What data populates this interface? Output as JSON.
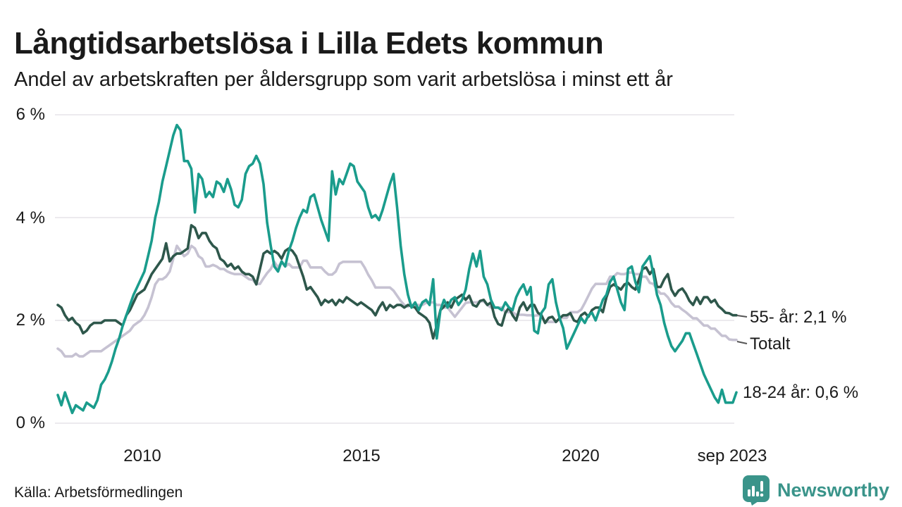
{
  "title": "Långtidsarbetslösa i Lilla Edets kommun",
  "subtitle": "Andel av arbetskraften per åldersgrupp som varit arbetslösa i minst ett år",
  "source": "Källa: Arbetsförmedlingen",
  "brand": {
    "name": "Newsworthy",
    "color": "#3a948a",
    "icon": "newsworthy-speech-bubble-bar-chart-icon"
  },
  "colors": {
    "young": "#1a9c8c",
    "old": "#2e574b",
    "total": "#c6c2d2",
    "grid": "#e5e3e8",
    "text": "#1a1a1a",
    "legend_dash": "#555555",
    "background": "#ffffff"
  },
  "chart_data": {
    "type": "line",
    "title": "Långtidsarbetslösa i Lilla Edets kommun",
    "subtitle": "Andel av arbetskraften per åldersgrupp som varit arbetslösa i minst ett år",
    "unit": "% av arbetskraften",
    "frequency": "monthly",
    "x_start": "jan 2008",
    "x_end": "sep 2023",
    "ylim": [
      0,
      6
    ],
    "y_ticks_top_down": [
      "6 %",
      "4 %",
      "2 %",
      "0 %"
    ],
    "x_tick_labels": [
      "2010",
      "2015",
      "2020",
      "sep 2023"
    ],
    "grid": "horizontal",
    "legend_position": "right-of-line-ends",
    "series": [
      {
        "name": "Totalt",
        "end_label": "Totalt",
        "end_value": 1.6,
        "color": "#c6c2d2",
        "values": [
          1.45,
          1.4,
          1.3,
          1.3,
          1.3,
          1.35,
          1.3,
          1.3,
          1.35,
          1.4,
          1.4,
          1.4,
          1.4,
          1.45,
          1.5,
          1.55,
          1.6,
          1.65,
          1.7,
          1.75,
          1.8,
          1.9,
          1.95,
          2.0,
          2.1,
          2.25,
          2.45,
          2.7,
          2.8,
          2.8,
          2.85,
          2.95,
          3.2,
          3.45,
          3.35,
          3.25,
          3.3,
          3.45,
          3.4,
          3.25,
          3.2,
          3.05,
          3.05,
          3.08,
          3.05,
          3.0,
          3.0,
          2.95,
          2.92,
          2.9,
          2.9,
          2.9,
          2.85,
          2.8,
          2.79,
          2.71,
          2.71,
          2.82,
          2.92,
          3.0,
          3.14,
          3.03,
          3.14,
          3.05,
          3.1,
          3.03,
          3.03,
          3.03,
          3.16,
          3.16,
          3.03,
          3.03,
          3.03,
          3.03,
          2.95,
          2.89,
          2.89,
          2.95,
          3.1,
          3.14,
          3.14,
          3.14,
          3.14,
          3.14,
          3.14,
          3.03,
          2.89,
          2.78,
          2.64,
          2.64,
          2.64,
          2.64,
          2.64,
          2.58,
          2.48,
          2.38,
          2.3,
          2.27,
          2.3,
          2.3,
          2.3,
          2.3,
          2.34,
          2.35,
          2.35,
          2.3,
          2.3,
          2.25,
          2.25,
          2.16,
          2.07,
          2.16,
          2.25,
          2.34,
          2.35,
          2.35,
          2.35,
          2.37,
          2.37,
          2.3,
          2.25,
          2.25,
          2.25,
          2.25,
          2.16,
          2.16,
          2.16,
          2.11,
          2.11,
          2.11,
          2.1,
          2.1,
          2.09,
          2.1,
          2.1,
          1.97,
          1.97,
          1.97,
          1.97,
          2.04,
          2.05,
          2.05,
          2.16,
          2.16,
          2.16,
          2.21,
          2.34,
          2.48,
          2.62,
          2.71,
          2.71,
          2.71,
          2.71,
          2.85,
          2.85,
          2.92,
          2.9,
          2.9,
          2.93,
          2.93,
          2.9,
          2.9,
          2.85,
          2.85,
          2.73,
          2.71,
          2.6,
          2.52,
          2.52,
          2.45,
          2.34,
          2.27,
          2.27,
          2.21,
          2.16,
          2.1,
          2.04,
          2.04,
          1.97,
          1.9,
          1.9,
          1.84,
          1.84,
          1.77,
          1.7,
          1.7,
          1.63,
          1.62,
          1.62
        ]
      },
      {
        "name": "55- år",
        "end_label": "55- år: 2,1 %",
        "end_value": 2.1,
        "color": "#2e574b",
        "values": [
          2.3,
          2.25,
          2.1,
          2.0,
          2.05,
          1.95,
          1.9,
          1.75,
          1.8,
          1.9,
          1.95,
          1.95,
          1.95,
          2.0,
          2.0,
          2.0,
          2.0,
          1.95,
          1.9,
          2.1,
          2.2,
          2.35,
          2.5,
          2.55,
          2.6,
          2.75,
          2.9,
          3.0,
          3.1,
          3.2,
          3.5,
          3.15,
          3.25,
          3.3,
          3.3,
          3.35,
          3.4,
          3.85,
          3.8,
          3.6,
          3.7,
          3.7,
          3.55,
          3.45,
          3.4,
          3.2,
          3.15,
          3.05,
          3.1,
          3.0,
          3.05,
          2.95,
          2.9,
          2.9,
          2.85,
          2.7,
          3.0,
          3.3,
          3.35,
          3.3,
          3.35,
          3.3,
          3.2,
          3.35,
          3.4,
          3.35,
          3.25,
          3.05,
          2.85,
          2.6,
          2.65,
          2.55,
          2.45,
          2.3,
          2.4,
          2.35,
          2.4,
          2.3,
          2.4,
          2.35,
          2.45,
          2.4,
          2.35,
          2.3,
          2.35,
          2.3,
          2.25,
          2.2,
          2.1,
          2.25,
          2.35,
          2.2,
          2.3,
          2.25,
          2.3,
          2.3,
          2.25,
          2.3,
          2.28,
          2.25,
          2.15,
          2.1,
          2.05,
          1.95,
          1.65,
          1.9,
          2.2,
          2.27,
          2.35,
          2.25,
          2.4,
          2.45,
          2.5,
          2.4,
          2.48,
          2.3,
          2.27,
          2.38,
          2.4,
          2.3,
          2.35,
          2.07,
          1.93,
          1.9,
          2.15,
          2.25,
          2.1,
          2.0,
          2.25,
          2.35,
          2.2,
          2.3,
          2.3,
          2.15,
          2.1,
          1.95,
          2.05,
          2.07,
          1.97,
          2.04,
          2.1,
          2.1,
          2.14,
          2.0,
          1.97,
          2.1,
          2.15,
          2.07,
          2.2,
          2.25,
          2.25,
          2.16,
          2.45,
          2.65,
          2.7,
          2.65,
          2.6,
          2.7,
          2.73,
          2.65,
          2.6,
          2.8,
          3.0,
          3.03,
          2.9,
          3.0,
          2.65,
          2.65,
          2.8,
          2.9,
          2.6,
          2.48,
          2.58,
          2.62,
          2.52,
          2.38,
          2.3,
          2.45,
          2.32,
          2.45,
          2.45,
          2.35,
          2.4,
          2.28,
          2.22,
          2.15,
          2.14,
          2.1,
          2.1
        ]
      },
      {
        "name": "18-24 år",
        "end_label": "18-24 år: 0,6 %",
        "end_value": 0.6,
        "color": "#1a9c8c",
        "values": [
          0.55,
          0.35,
          0.6,
          0.4,
          0.2,
          0.35,
          0.3,
          0.25,
          0.4,
          0.35,
          0.3,
          0.45,
          0.75,
          0.85,
          1.0,
          1.2,
          1.45,
          1.65,
          1.9,
          2.1,
          2.3,
          2.5,
          2.65,
          2.8,
          2.95,
          3.25,
          3.55,
          4.0,
          4.3,
          4.7,
          5.0,
          5.3,
          5.6,
          5.8,
          5.7,
          5.1,
          5.1,
          4.95,
          4.1,
          4.85,
          4.75,
          4.4,
          4.5,
          4.4,
          4.7,
          4.65,
          4.5,
          4.75,
          4.55,
          4.25,
          4.2,
          4.35,
          4.85,
          5.0,
          5.05,
          5.2,
          5.05,
          4.65,
          3.9,
          3.45,
          3.05,
          2.95,
          3.15,
          3.05,
          3.35,
          3.55,
          3.8,
          4.0,
          4.15,
          4.1,
          4.4,
          4.45,
          4.2,
          3.95,
          3.75,
          3.55,
          4.9,
          4.45,
          4.75,
          4.65,
          4.85,
          5.05,
          5.0,
          4.7,
          4.6,
          4.5,
          4.2,
          4.0,
          4.05,
          3.95,
          4.15,
          4.4,
          4.65,
          4.85,
          4.2,
          3.45,
          2.9,
          2.5,
          2.25,
          2.35,
          2.2,
          2.35,
          2.4,
          2.3,
          2.8,
          1.65,
          2.2,
          2.4,
          2.25,
          2.4,
          2.45,
          2.3,
          2.4,
          2.6,
          3.0,
          3.3,
          3.05,
          3.35,
          2.85,
          2.7,
          2.4,
          2.25,
          2.25,
          2.2,
          2.35,
          2.25,
          2.2,
          2.45,
          2.6,
          2.7,
          2.5,
          2.65,
          1.8,
          1.75,
          2.15,
          2.25,
          2.7,
          2.8,
          2.35,
          2.05,
          1.85,
          1.45,
          1.6,
          1.75,
          1.9,
          2.05,
          1.95,
          2.1,
          2.15,
          2.0,
          2.2,
          2.4,
          2.5,
          2.75,
          2.85,
          2.6,
          2.35,
          2.2,
          3.0,
          3.05,
          2.75,
          2.55,
          3.05,
          3.15,
          3.25,
          2.9,
          2.5,
          2.3,
          1.95,
          1.7,
          1.5,
          1.4,
          1.5,
          1.6,
          1.75,
          1.75,
          1.55,
          1.35,
          1.15,
          0.95,
          0.8,
          0.65,
          0.5,
          0.4,
          0.65,
          0.4,
          0.4,
          0.4,
          0.6
        ]
      }
    ]
  },
  "layout_values": {
    "ytick_6": "6 %",
    "ytick_4": "4 %",
    "ytick_2": "2 %",
    "ytick_0": "0 %",
    "xtick_2010": "2010",
    "xtick_2015": "2015",
    "xtick_2020": "2020",
    "xtick_sep2023": "sep 2023",
    "label_old": "55- år: 2,1 %",
    "label_total": "Totalt",
    "label_young": "18-24 år: 0,6 %"
  }
}
